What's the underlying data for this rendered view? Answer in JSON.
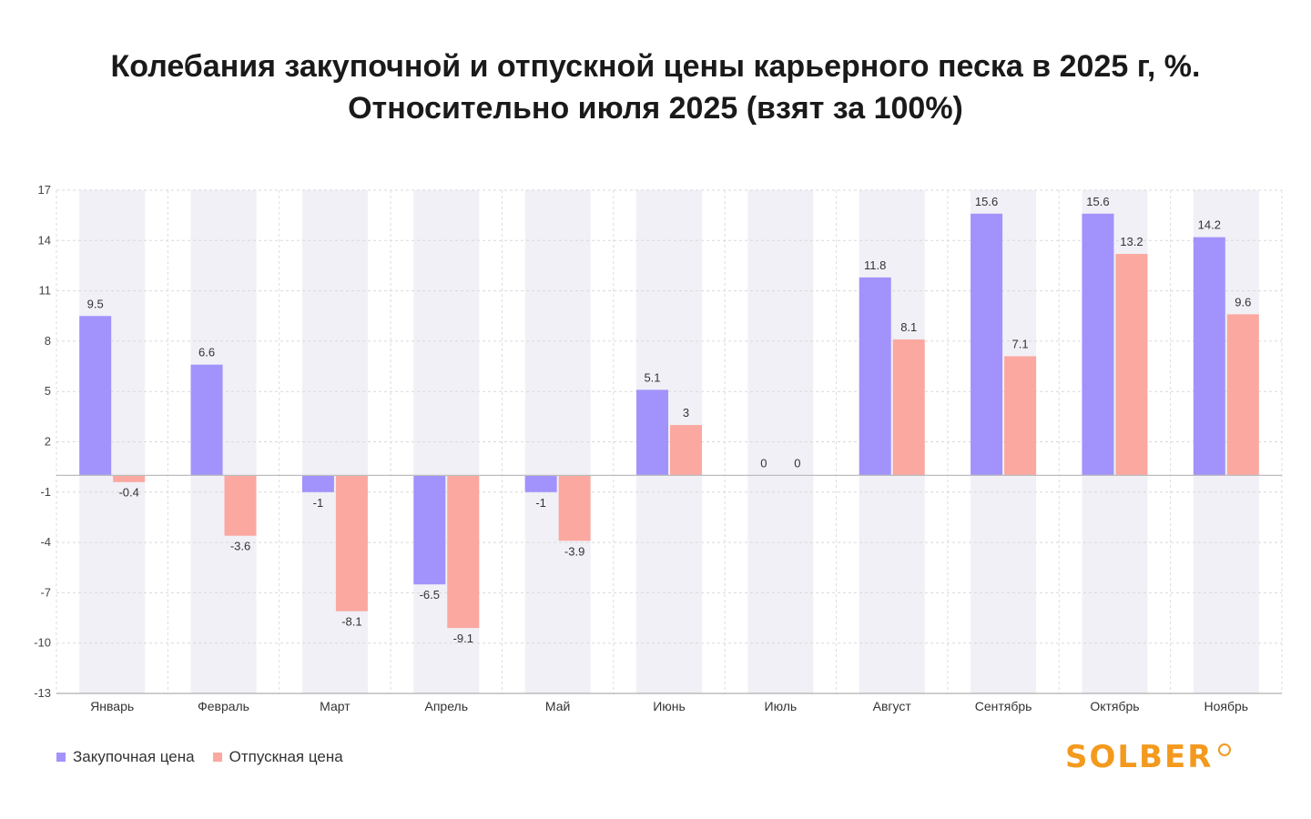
{
  "title": {
    "line1": "Колебания закупочной и отпускной цены карьерного песка в 2025 г, %.",
    "line2": "Относительно июля 2025 (взят за 100%)"
  },
  "legend": {
    "series1": "Закупочная цена",
    "series2": "Отпускная цена"
  },
  "logo": {
    "text": "SOLBER"
  },
  "colors": {
    "series1": "#a193fb",
    "series2": "#fba8a0",
    "band": "#f0f0f6",
    "logo": "#f39a1e"
  },
  "chart_data": {
    "type": "bar",
    "categories": [
      "Январь",
      "Февраль",
      "Март",
      "Апрель",
      "Май",
      "Июнь",
      "Июль",
      "Август",
      "Сентябрь",
      "Октябрь",
      "Ноябрь"
    ],
    "series": [
      {
        "name": "Закупочная цена",
        "values": [
          9.5,
          6.6,
          -1,
          -6.5,
          -1,
          5.1,
          0,
          11.8,
          15.6,
          15.6,
          14.2
        ]
      },
      {
        "name": "Отпускная цена",
        "values": [
          -0.4,
          -3.6,
          -8.1,
          -9.1,
          -3.9,
          3,
          0,
          8.1,
          7.1,
          13.2,
          9.6
        ]
      }
    ],
    "data_labels": [
      [
        "9.5",
        "6.6",
        "-1",
        "-6.5",
        "-1",
        "5.1",
        "0",
        "11.8",
        "15.6",
        "15.6",
        "14.2"
      ],
      [
        "-0.4",
        "-3.6",
        "-8.1",
        "-9.1",
        "-3.9",
        "3",
        "0",
        "8.1",
        "7.1",
        "13.2",
        "9.6"
      ]
    ],
    "ylim": [
      -13,
      17
    ],
    "yticks": [
      "17",
      "14",
      "11",
      "8",
      "5",
      "2",
      "-1",
      "-4",
      "-7",
      "-10",
      "-13"
    ],
    "grid": true,
    "legend_position": "bottom-left"
  }
}
